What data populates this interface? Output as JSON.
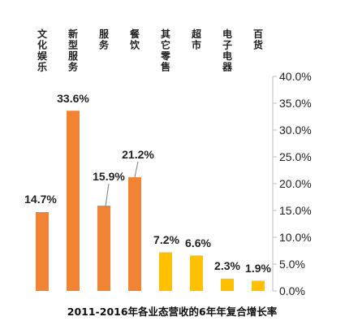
{
  "chart_data": {
    "type": "bar",
    "title": "2011-2016年各业态营收的6年年复合增长率",
    "categories": [
      "文化娱乐",
      "新型服务",
      "服务",
      "餐饮",
      "其它零售",
      "超市",
      "电子电器",
      "百货"
    ],
    "values": [
      14.7,
      33.6,
      15.9,
      21.2,
      7.2,
      6.6,
      2.3,
      1.9
    ],
    "value_labels": [
      "14.7%",
      "33.6%",
      "15.9%",
      "21.2%",
      "7.2%",
      "6.6%",
      "2.3%",
      "1.9%"
    ],
    "y_tick_labels": [
      "0.0%",
      "5.0%",
      "10.0%",
      "15.0%",
      "20.0%",
      "25.0%",
      "30.0%",
      "35.0%",
      "40.0%"
    ],
    "ylim": [
      0,
      40
    ],
    "y_axis_position": "right",
    "category_label_position": "top",
    "grid": false,
    "legend": "none",
    "colors": {
      "highlight": "#F08434",
      "other": "#FFC000",
      "bar_by_category": [
        "#F08434",
        "#F08434",
        "#F08434",
        "#F08434",
        "#FFC000",
        "#FFC000",
        "#FFC000",
        "#FFC000"
      ],
      "axis": "#BFBFBF"
    }
  }
}
